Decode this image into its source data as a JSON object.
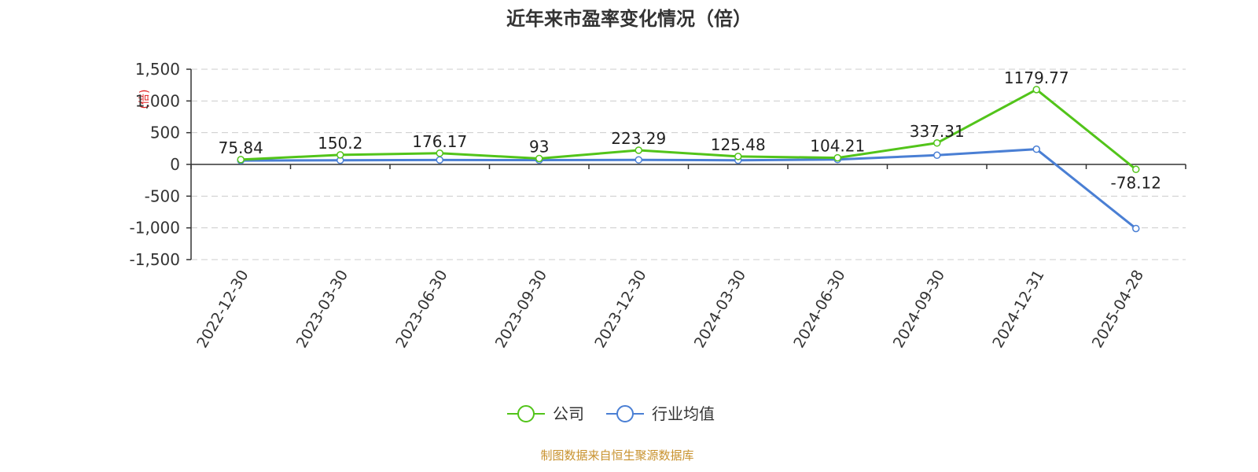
{
  "chart_data": {
    "type": "line",
    "title": "近年来市盈率变化情况（倍）",
    "ylabel": "(倍)",
    "xlabel": "",
    "categories": [
      "2022-12-30",
      "2023-03-30",
      "2023-06-30",
      "2023-09-30",
      "2023-12-30",
      "2024-03-30",
      "2024-06-30",
      "2024-09-30",
      "2024-12-31",
      "2025-04-28"
    ],
    "ylim": [
      -1500,
      1500
    ],
    "yticks": [
      1500,
      1000,
      500,
      0,
      -500,
      -1000,
      -1500
    ],
    "ytick_labels": [
      "1,500",
      "1,000",
      "500",
      "0",
      "-500",
      "-1,000",
      "-1,500"
    ],
    "grid": true,
    "legend_position": "bottom-center",
    "series": [
      {
        "name": "公司",
        "color": "#52c41a",
        "values": [
          75.84,
          150.2,
          176.17,
          93,
          223.29,
          125.48,
          104.21,
          337.31,
          1179.77,
          -78.12
        ],
        "labels": [
          "75.84",
          "150.2",
          "176.17",
          "93",
          "223.29",
          "125.48",
          "104.21",
          "337.31",
          "1179.77",
          "-78.12"
        ]
      },
      {
        "name": "行业均值",
        "color": "#4a7fd4",
        "values": [
          60,
          65,
          70,
          68,
          72,
          65,
          78,
          145,
          240,
          -1010
        ]
      }
    ]
  },
  "source": "制图数据来自恒生聚源数据库"
}
